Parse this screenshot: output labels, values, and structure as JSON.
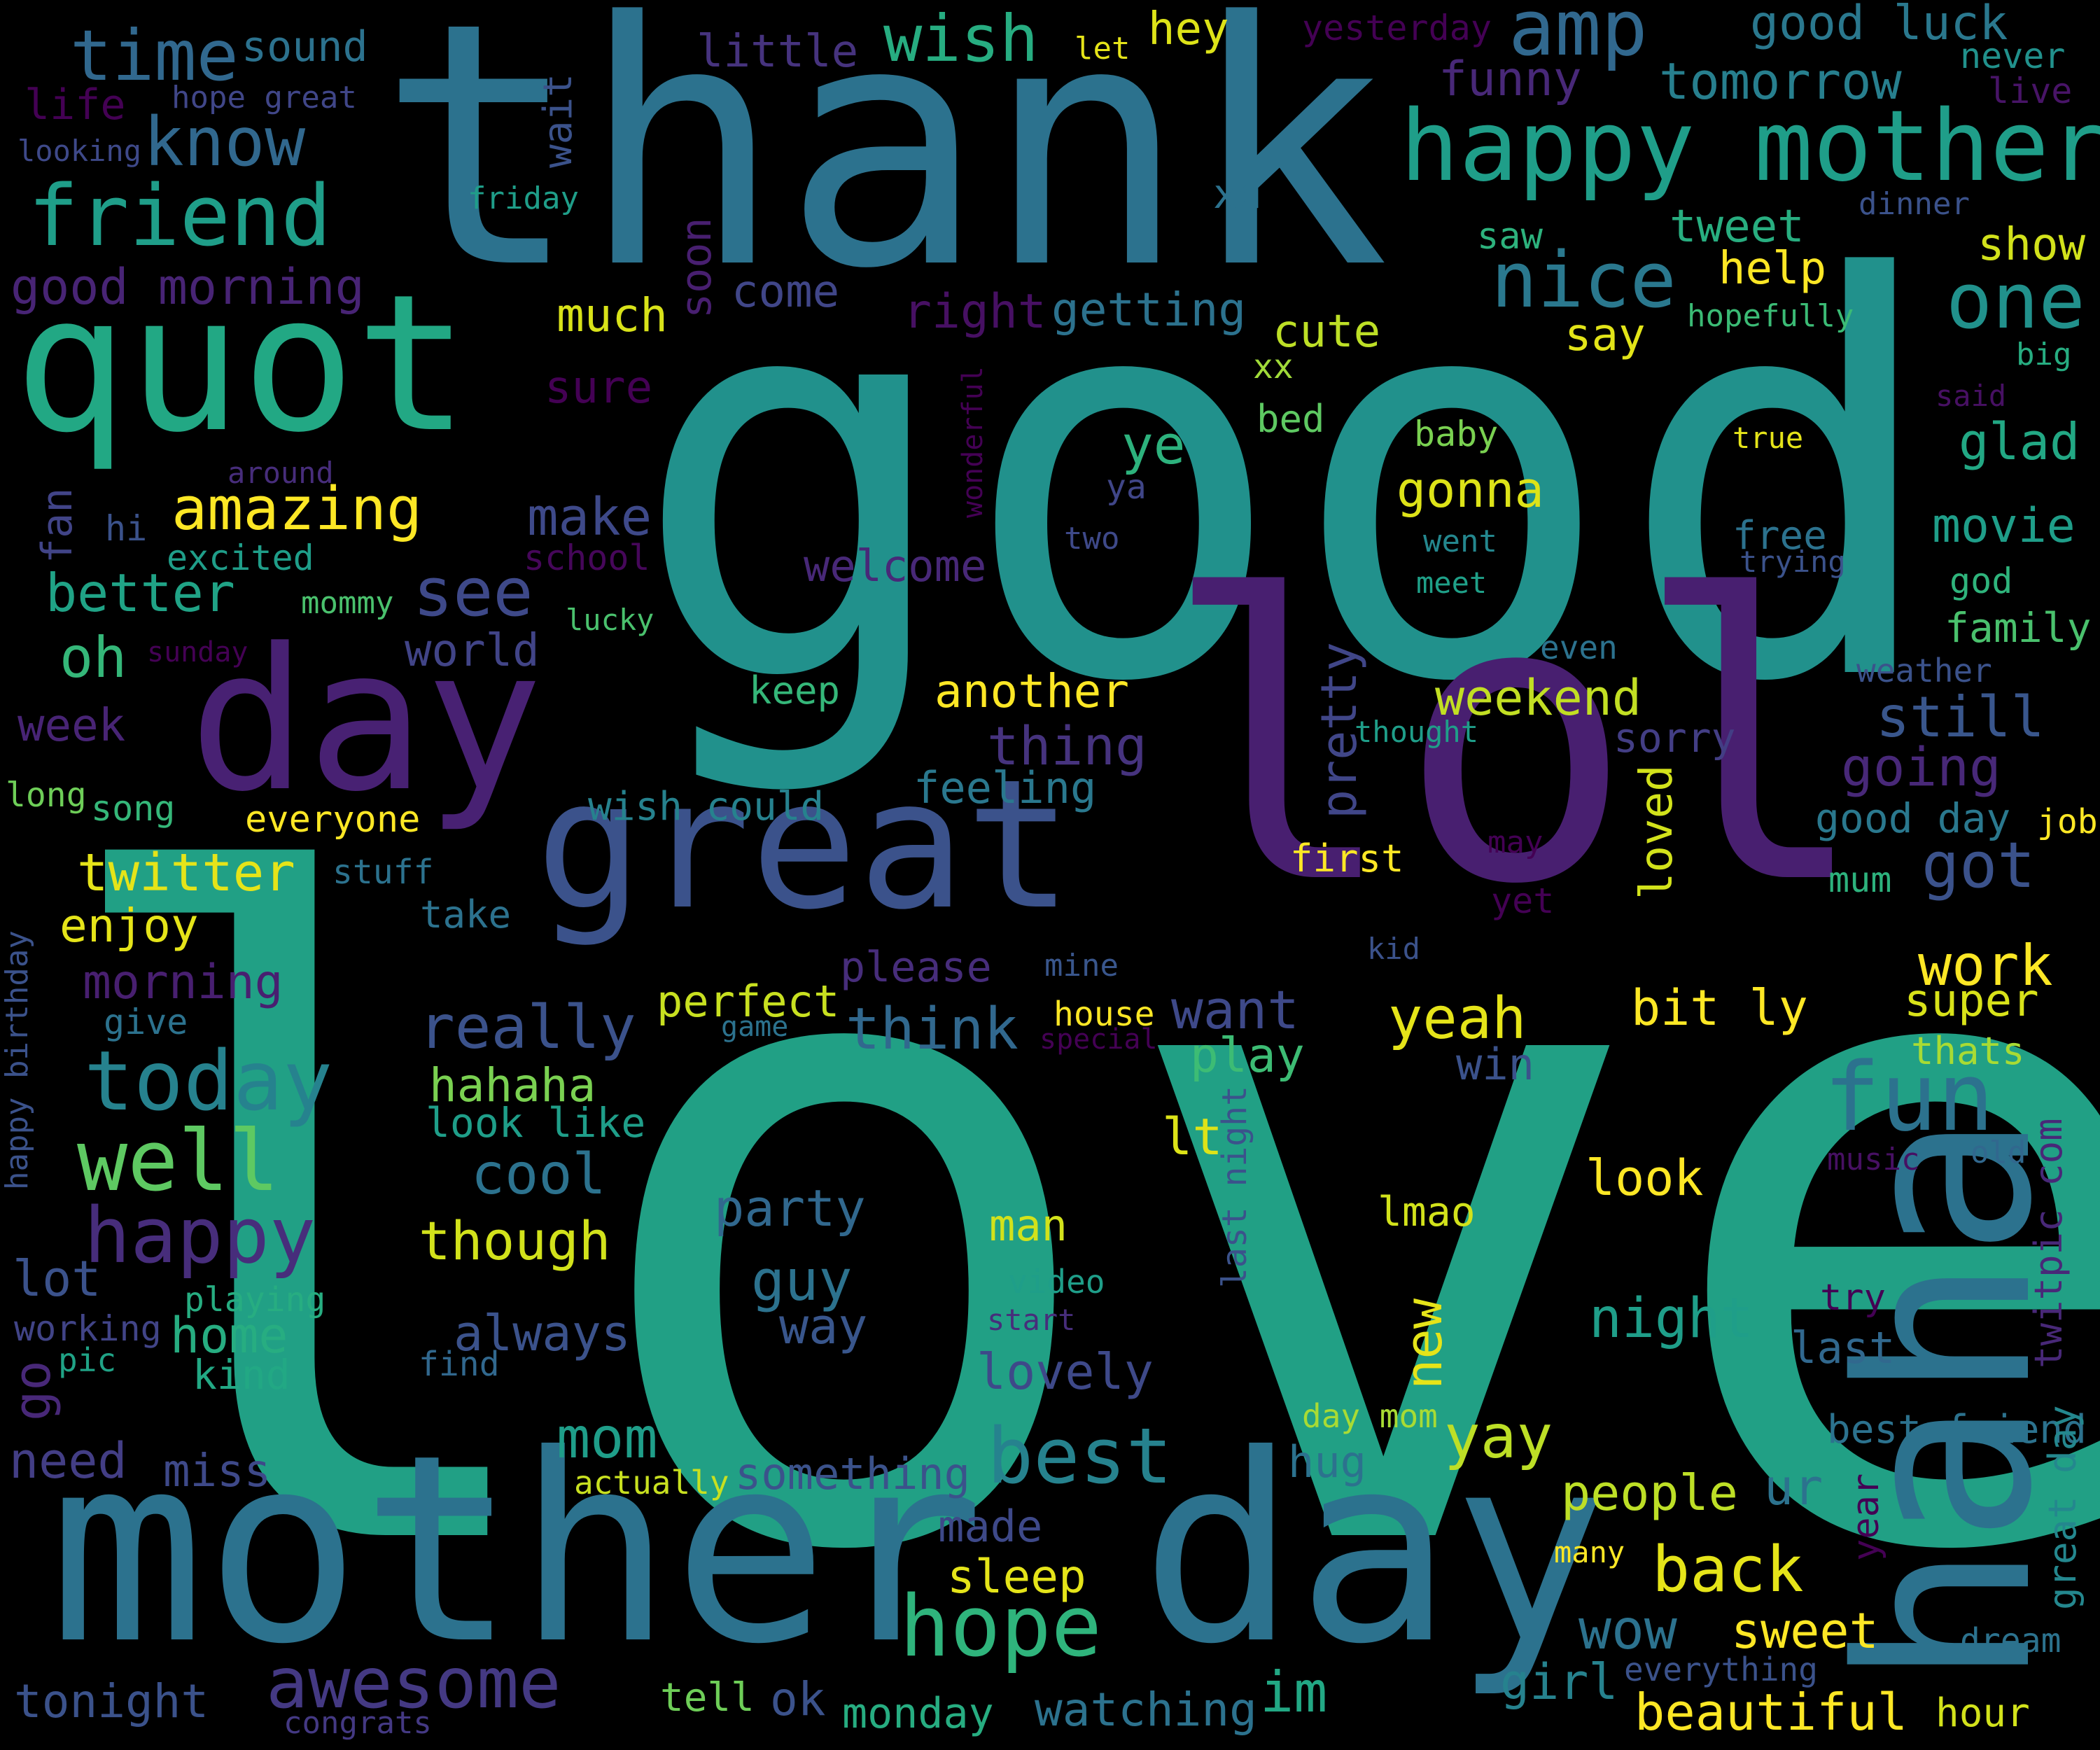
{
  "words": [
    {
      "text": "love",
      "color": "#21a085"
    },
    {
      "text": "good",
      "color": "#21918c"
    },
    {
      "text": "thank",
      "color": "#2c728e"
    },
    {
      "text": "lol",
      "color": "#481f70"
    },
    {
      "text": "mother day",
      "color": "#2c728e"
    },
    {
      "text": "haha",
      "color": "#2c728e"
    },
    {
      "text": "quot",
      "color": "#22a884"
    },
    {
      "text": "day",
      "color": "#482173"
    },
    {
      "text": "great",
      "color": "#3b528b"
    },
    {
      "text": "happy mother",
      "color": "#1f9e89"
    },
    {
      "text": "amp",
      "color": "#31688e"
    },
    {
      "text": "time",
      "color": "#31688e"
    },
    {
      "text": "know",
      "color": "#31688e"
    },
    {
      "text": "friend",
      "color": "#1f9e89"
    },
    {
      "text": "wish",
      "color": "#27ad81"
    },
    {
      "text": "fun",
      "color": "#2c728e"
    },
    {
      "text": "today",
      "color": "#26828e"
    },
    {
      "text": "well",
      "color": "#5ec962"
    },
    {
      "text": "happy",
      "color": "#472d7b"
    },
    {
      "text": "hope",
      "color": "#2fb47c"
    },
    {
      "text": "awesome",
      "color": "#443983"
    },
    {
      "text": "best",
      "color": "#26828e"
    },
    {
      "text": "nice",
      "color": "#2a788e"
    },
    {
      "text": "one",
      "color": "#21918c"
    },
    {
      "text": "amazing",
      "color": "#fde725"
    },
    {
      "text": "better",
      "color": "#20a386"
    },
    {
      "text": "see",
      "color": "#3e4989"
    },
    {
      "text": "oh",
      "color": "#35b779"
    },
    {
      "text": "good morning",
      "color": "#482475"
    },
    {
      "text": "sound",
      "color": "#2c728e"
    },
    {
      "text": "little",
      "color": "#46337e"
    },
    {
      "text": "hey",
      "color": "#dde318"
    },
    {
      "text": "let",
      "color": "#e5e419"
    },
    {
      "text": "yesterday",
      "color": "#440154"
    },
    {
      "text": "good luck",
      "color": "#2a788e"
    },
    {
      "text": "never",
      "color": "#21918c"
    },
    {
      "text": "live",
      "color": "#481467"
    },
    {
      "text": "tomorrow",
      "color": "#277f8e"
    },
    {
      "text": "funny",
      "color": "#482878"
    },
    {
      "text": "life",
      "color": "#440154"
    },
    {
      "text": "hope great",
      "color": "#404688"
    },
    {
      "text": "looking",
      "color": "#3e4989"
    },
    {
      "text": "wait",
      "color": "#3b528b"
    },
    {
      "text": "friday",
      "color": "#1f9e89"
    },
    {
      "text": "xd",
      "color": "#2c728e"
    },
    {
      "text": "tweet",
      "color": "#28ae80"
    },
    {
      "text": "dinner",
      "color": "#3b528b"
    },
    {
      "text": "saw",
      "color": "#2db27d"
    },
    {
      "text": "help",
      "color": "#fde725"
    },
    {
      "text": "show",
      "color": "#d2e21b"
    },
    {
      "text": "come",
      "color": "#404688"
    },
    {
      "text": "soon",
      "color": "#481f70"
    },
    {
      "text": "much",
      "color": "#d8e219"
    },
    {
      "text": "right",
      "color": "#471063"
    },
    {
      "text": "getting",
      "color": "#2c728e"
    },
    {
      "text": "cute",
      "color": "#bddf26"
    },
    {
      "text": "say",
      "color": "#e2e418"
    },
    {
      "text": "hopefully",
      "color": "#3bbb75"
    },
    {
      "text": "big",
      "color": "#27ad81"
    },
    {
      "text": "sure",
      "color": "#440154"
    },
    {
      "text": "xx",
      "color": "#a0da39"
    },
    {
      "text": "said",
      "color": "#471063"
    },
    {
      "text": "bed",
      "color": "#5ec962"
    },
    {
      "text": "baby",
      "color": "#7ad151"
    },
    {
      "text": "true",
      "color": "#e5e419"
    },
    {
      "text": "ye",
      "color": "#2db27d"
    },
    {
      "text": "glad",
      "color": "#22a884"
    },
    {
      "text": "wonderful",
      "color": "#440154"
    },
    {
      "text": "around",
      "color": "#472d7b"
    },
    {
      "text": "gonna",
      "color": "#dde318"
    },
    {
      "text": "fan",
      "color": "#414487"
    },
    {
      "text": "hi",
      "color": "#3b528b"
    },
    {
      "text": "excited",
      "color": "#1f9e89"
    },
    {
      "text": "make",
      "color": "#3e4989"
    },
    {
      "text": "ya",
      "color": "#404688"
    },
    {
      "text": "two",
      "color": "#3e4989"
    },
    {
      "text": "free",
      "color": "#2c728e"
    },
    {
      "text": "trying",
      "color": "#3b528b"
    },
    {
      "text": "movie",
      "color": "#1f9e89"
    },
    {
      "text": "school",
      "color": "#46075a"
    },
    {
      "text": "welcome",
      "color": "#482878"
    },
    {
      "text": "went",
      "color": "#24878e"
    },
    {
      "text": "god",
      "color": "#2fb47c"
    },
    {
      "text": "meet",
      "color": "#1fa088"
    },
    {
      "text": "mommy",
      "color": "#4ac16d"
    },
    {
      "text": "family",
      "color": "#4ac16d"
    },
    {
      "text": "world",
      "color": "#414487"
    },
    {
      "text": "lucky",
      "color": "#4ac16d"
    },
    {
      "text": "sunday",
      "color": "#440154"
    },
    {
      "text": "even",
      "color": "#2c728e"
    },
    {
      "text": "weather",
      "color": "#3b528b"
    },
    {
      "text": "keep",
      "color": "#35b779"
    },
    {
      "text": "another",
      "color": "#fde725"
    },
    {
      "text": "weekend",
      "color": "#c2df23"
    },
    {
      "text": "week",
      "color": "#482475"
    },
    {
      "text": "thought",
      "color": "#1f9e89"
    },
    {
      "text": "still",
      "color": "#39568c"
    },
    {
      "text": "thing",
      "color": "#46337e"
    },
    {
      "text": "pretty",
      "color": "#404688"
    },
    {
      "text": "sorry",
      "color": "#433e85"
    },
    {
      "text": "going",
      "color": "#482878"
    },
    {
      "text": "long",
      "color": "#6ece58"
    },
    {
      "text": "song",
      "color": "#35b779"
    },
    {
      "text": "everyone",
      "color": "#fde725"
    },
    {
      "text": "wish could",
      "color": "#26828e"
    },
    {
      "text": "feeling",
      "color": "#2a788e"
    },
    {
      "text": "good day",
      "color": "#2a788e"
    },
    {
      "text": "job",
      "color": "#fde725"
    },
    {
      "text": "twitter",
      "color": "#e5e419"
    },
    {
      "text": "stuff",
      "color": "#2c728e"
    },
    {
      "text": "first",
      "color": "#fde725"
    },
    {
      "text": "may",
      "color": "#440154"
    },
    {
      "text": "got",
      "color": "#3b528b"
    },
    {
      "text": "mum",
      "color": "#2db27d"
    },
    {
      "text": "enjoy",
      "color": "#e5e419"
    },
    {
      "text": "loved",
      "color": "#d2e21b"
    },
    {
      "text": "yet",
      "color": "#440154"
    },
    {
      "text": "take",
      "color": "#2c728e"
    },
    {
      "text": "kid",
      "color": "#3b528b"
    },
    {
      "text": "work",
      "color": "#fde725"
    },
    {
      "text": "happy birthday",
      "color": "#3b528b"
    },
    {
      "text": "morning",
      "color": "#481f70"
    },
    {
      "text": "please",
      "color": "#472d7b"
    },
    {
      "text": "mine",
      "color": "#39568c"
    },
    {
      "text": "perfect",
      "color": "#c8e020"
    },
    {
      "text": "house",
      "color": "#fde725"
    },
    {
      "text": "want",
      "color": "#3e4989"
    },
    {
      "text": "really",
      "color": "#3b528b"
    },
    {
      "text": "think",
      "color": "#31688e"
    },
    {
      "text": "yeah",
      "color": "#e5e419"
    },
    {
      "text": "bit ly",
      "color": "#fde725"
    },
    {
      "text": "super",
      "color": "#d8e219"
    },
    {
      "text": "give",
      "color": "#2c728e"
    },
    {
      "text": "game",
      "color": "#2c728e"
    },
    {
      "text": "special",
      "color": "#440154"
    },
    {
      "text": "twitpic com",
      "color": "#482878"
    },
    {
      "text": "thats",
      "color": "#a8db34"
    },
    {
      "text": "play",
      "color": "#3dbc74"
    },
    {
      "text": "win",
      "color": "#3b528b"
    },
    {
      "text": "hahaha",
      "color": "#7ad151"
    },
    {
      "text": "look like",
      "color": "#1f9e89"
    },
    {
      "text": "lt",
      "color": "#dde318"
    },
    {
      "text": "last night",
      "color": "#3b528b"
    },
    {
      "text": "music",
      "color": "#471063"
    },
    {
      "text": "old",
      "color": "#31688e"
    },
    {
      "text": "cool",
      "color": "#2c728e"
    },
    {
      "text": "look",
      "color": "#fde725"
    },
    {
      "text": "party",
      "color": "#31688e"
    },
    {
      "text": "though",
      "color": "#d2e21b"
    },
    {
      "text": "man",
      "color": "#d2e21b"
    },
    {
      "text": "lmao",
      "color": "#d2e21b"
    },
    {
      "text": "guy",
      "color": "#2c728e"
    },
    {
      "text": "video",
      "color": "#1f9e89"
    },
    {
      "text": "new",
      "color": "#e5e419"
    },
    {
      "text": "lot",
      "color": "#3b528b"
    },
    {
      "text": "playing",
      "color": "#27ad81"
    },
    {
      "text": "night",
      "color": "#1f9e89"
    },
    {
      "text": "try",
      "color": "#440154"
    },
    {
      "text": "working",
      "color": "#414487"
    },
    {
      "text": "home",
      "color": "#27ad81"
    },
    {
      "text": "always",
      "color": "#3b528b"
    },
    {
      "text": "start",
      "color": "#472d7b"
    },
    {
      "text": "way",
      "color": "#39568c"
    },
    {
      "text": "last",
      "color": "#31688e"
    },
    {
      "text": "go",
      "color": "#482878"
    },
    {
      "text": "pic",
      "color": "#20a386"
    },
    {
      "text": "find",
      "color": "#31688e"
    },
    {
      "text": "kind",
      "color": "#22a884"
    },
    {
      "text": "lovely",
      "color": "#3e4989"
    },
    {
      "text": "day mom",
      "color": "#a8db34"
    },
    {
      "text": "need",
      "color": "#433e85"
    },
    {
      "text": "miss",
      "color": "#3e4989"
    },
    {
      "text": "mom",
      "color": "#1f9e89"
    },
    {
      "text": "yay",
      "color": "#bddf26"
    },
    {
      "text": "best friend",
      "color": "#2c728e"
    },
    {
      "text": "something",
      "color": "#3b528b"
    },
    {
      "text": "actually",
      "color": "#c8e020"
    },
    {
      "text": "made",
      "color": "#3e4989"
    },
    {
      "text": "hug",
      "color": "#2c728e"
    },
    {
      "text": "people",
      "color": "#bddf26"
    },
    {
      "text": "ur",
      "color": "#2c728e"
    },
    {
      "text": "year",
      "color": "#440154"
    },
    {
      "text": "great day",
      "color": "#24878e"
    },
    {
      "text": "sleep",
      "color": "#e5e419"
    },
    {
      "text": "back",
      "color": "#e5e419"
    },
    {
      "text": "many",
      "color": "#fde725"
    },
    {
      "text": "sweet",
      "color": "#fde725"
    },
    {
      "text": "wow",
      "color": "#2c728e"
    },
    {
      "text": "dream",
      "color": "#2c728e"
    },
    {
      "text": "everything",
      "color": "#3b528b"
    },
    {
      "text": "tonight",
      "color": "#3b528b"
    },
    {
      "text": "tell",
      "color": "#6ece58"
    },
    {
      "text": "ok",
      "color": "#3b528b"
    },
    {
      "text": "monday",
      "color": "#27ad81"
    },
    {
      "text": "watching",
      "color": "#2c728e"
    },
    {
      "text": "im",
      "color": "#22a884"
    },
    {
      "text": "girl",
      "color": "#26828e"
    },
    {
      "text": "beautiful",
      "color": "#fde725"
    },
    {
      "text": "hour",
      "color": "#d2e21b"
    },
    {
      "text": "congrats",
      "color": "#443983"
    }
  ]
}
